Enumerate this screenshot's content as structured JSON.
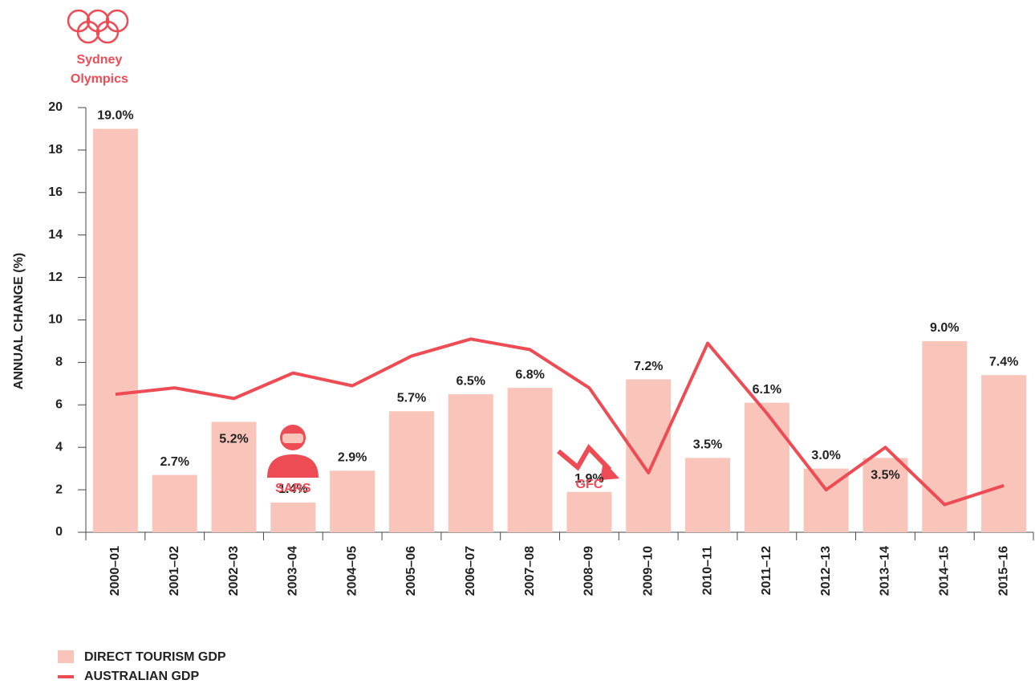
{
  "chart_data": {
    "type": "bar-line",
    "y_axis_label": "ANNUAL  CHANGE (%)",
    "categories": [
      "2000–01",
      "2001–02",
      "2002–03",
      "2003–04",
      "2004–05",
      "2005–06",
      "2006–07",
      "2007–08",
      "2008–09",
      "2009–10",
      "2010–11",
      "2011–12",
      "2012–13",
      "2013–14",
      "2014–15",
      "2015–16"
    ],
    "series": [
      {
        "name": "DIRECT TOURISM GDP",
        "type": "bar",
        "color": "#f9c5ba",
        "values": [
          19.0,
          2.7,
          5.2,
          1.4,
          2.9,
          5.7,
          6.5,
          6.8,
          1.9,
          7.2,
          3.5,
          6.1,
          3.0,
          3.5,
          9.0,
          7.4
        ],
        "value_labels": [
          "19.0%",
          "2.7%",
          "5.2%",
          "1.4%",
          "2.9%",
          "5.7%",
          "6.5%",
          "6.8%",
          "1.9%",
          "7.2%",
          "3.5%",
          "6.1%",
          "3.0%",
          "3.5%",
          "9.0%",
          "7.4%"
        ]
      },
      {
        "name": "AUSTRALIAN GDP",
        "type": "line",
        "color": "#ee4c55",
        "values": [
          6.5,
          6.8,
          6.3,
          7.5,
          6.9,
          8.3,
          9.1,
          8.6,
          6.8,
          2.8,
          8.9,
          5.6,
          2.0,
          4.0,
          1.3,
          2.2
        ]
      }
    ],
    "ylim": [
      0,
      20
    ],
    "yticks": [
      0,
      2,
      4,
      6,
      8,
      10,
      12,
      14,
      16,
      18,
      20
    ],
    "annotations": [
      {
        "text": [
          "Sydney",
          "Olympics"
        ],
        "category": 0
      },
      {
        "text": "SARS",
        "category": 3
      },
      {
        "text": "GFC",
        "category": 8
      }
    ]
  }
}
